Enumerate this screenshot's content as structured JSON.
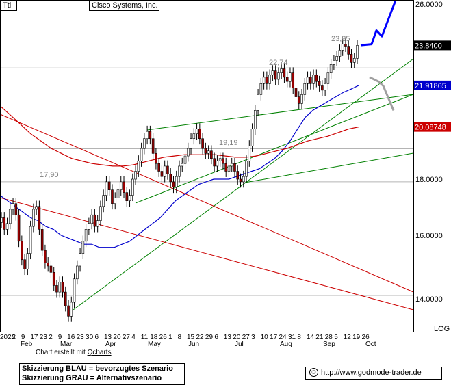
{
  "header": {
    "code": "Ttl",
    "company": "Cisco Systems, Inc."
  },
  "footer": {
    "credit_prefix": "Chart erstellt mit ",
    "credit_tool": "Qcharts",
    "legend_lines": [
      "Skizzierung BLAU = bevorzugtes Szenario",
      "Skizzierung GRAU = Alternativszenario"
    ],
    "copyright_symbol": "©",
    "url": "http://www.godmode-trader.de"
  },
  "colors": {
    "candle_up": "#ffffff",
    "candle_down": "#990000",
    "ma_short": "#0000cc",
    "ma_long": "#cc0000",
    "trend_green": "#008000",
    "trend_red": "#cc0000",
    "scenario_blue": "#0000ff",
    "scenario_grey": "#a0a0a0"
  },
  "chart_data": {
    "type": "candlestick",
    "y_axis": {
      "scale": "log",
      "scale_label": "LOG",
      "ticks": [
        14,
        16,
        18,
        26
      ],
      "tick_labels": [
        "14.0000",
        "16.0000",
        "18.0000",
        "26.0000"
      ],
      "range": [
        13.2,
        26.2
      ]
    },
    "x_axis": {
      "day_ticks": [
        "2026",
        "2",
        "9",
        "17",
        "23",
        "2",
        "9",
        "16",
        "23",
        "30",
        "6",
        "13",
        "20",
        "27",
        "4",
        "11",
        "18",
        "26",
        "1",
        "8",
        "15",
        "22",
        "29",
        "6",
        "13",
        "20",
        "27",
        "3",
        "10",
        "17",
        "24",
        "31",
        "8",
        "14",
        "21",
        "28",
        "5",
        "12",
        "19",
        "26"
      ],
      "month_labels": [
        "Feb",
        "Mar",
        "Apr",
        "May",
        "Jun",
        "Jul",
        "Aug",
        "Sep",
        "Oct"
      ]
    },
    "price_labels": [
      {
        "text": "17,90",
        "value": 17.9
      },
      {
        "text": "19,19",
        "value": 19.19
      },
      {
        "text": "22,74",
        "value": 22.74
      },
      {
        "text": "23,85",
        "value": 23.85
      }
    ],
    "price_tags": [
      {
        "text": "23.8400",
        "value": 23.84,
        "style": "black"
      },
      {
        "text": "21.91865",
        "value": 21.91865,
        "style": "blue"
      },
      {
        "text": "20.08748",
        "value": 20.08748,
        "style": "red"
      }
    ],
    "horizontal_levels": [
      17.9,
      19.19,
      22.74,
      14.1
    ],
    "close_series": [
      16.6,
      16.2,
      16.4,
      16.9,
      17.1,
      16.7,
      15.8,
      15.2,
      14.9,
      15.4,
      16.3,
      16.9,
      17.0,
      16.2,
      15.5,
      15.1,
      15.0,
      14.8,
      14.4,
      14.2,
      14.5,
      14.2,
      13.8,
      13.5,
      13.9,
      14.6,
      15.0,
      15.4,
      15.8,
      16.2,
      16.4,
      16.7,
      16.3,
      16.5,
      17.0,
      17.4,
      17.9,
      17.6,
      17.1,
      17.3,
      17.6,
      17.9,
      17.5,
      17.2,
      17.4,
      18.0,
      18.3,
      18.7,
      19.2,
      19.6,
      19.9,
      19.6,
      19.0,
      18.6,
      18.3,
      18.1,
      18.5,
      18.2,
      17.9,
      17.7,
      18.1,
      18.5,
      18.6,
      18.9,
      19.2,
      19.6,
      19.8,
      20.0,
      19.6,
      19.2,
      19.0,
      19.1,
      18.8,
      18.5,
      18.7,
      18.8,
      18.6,
      18.3,
      18.5,
      18.6,
      18.3,
      18.0,
      17.9,
      18.1,
      18.7,
      19.3,
      20.0,
      20.8,
      21.5,
      22.0,
      22.3,
      22.0,
      22.4,
      22.6,
      22.2,
      22.5,
      22.7,
      22.3,
      22.1,
      22.5,
      21.8,
      21.4,
      21.1,
      21.5,
      22.0,
      22.3,
      22.0,
      22.4,
      22.1,
      21.9,
      21.7,
      22.0,
      22.5,
      22.9,
      23.1,
      23.3,
      23.6,
      23.9,
      23.8,
      23.4,
      23.0,
      23.2,
      23.84
    ],
    "ma_short_series": [
      17.4,
      17.2,
      17.0,
      16.8,
      16.6,
      16.5,
      16.3,
      16.2,
      16.0,
      15.9,
      15.8,
      15.7,
      15.7,
      15.6,
      15.6,
      15.6,
      15.7,
      15.8,
      16.0,
      16.2,
      16.4,
      16.6,
      16.9,
      17.2,
      17.4,
      17.6,
      17.8,
      17.9,
      18.0,
      18.0,
      18.0,
      18.1,
      18.2,
      18.3,
      18.4,
      18.6,
      18.8,
      19.1,
      19.5,
      20.0,
      20.5,
      20.8,
      21.0,
      21.2,
      21.4,
      21.6,
      21.75,
      21.9186
    ],
    "ma_long_series": [
      21.0,
      20.6,
      20.2,
      19.8,
      19.5,
      19.2,
      19.0,
      18.8,
      18.7,
      18.6,
      18.55,
      18.5,
      18.5,
      18.55,
      18.65,
      18.75,
      18.85,
      18.9,
      18.95,
      18.95,
      18.95,
      18.95,
      18.9,
      18.85,
      18.85,
      18.9,
      19.0,
      19.1,
      19.2,
      19.35,
      19.5,
      19.6,
      19.7,
      19.85,
      20.0,
      20.0875
    ],
    "scenario_blue": [
      23.85,
      23.9,
      24.6,
      24.3,
      26.2
    ],
    "scenario_grey": [
      22.3,
      22.1,
      21.9,
      20.8
    ]
  }
}
